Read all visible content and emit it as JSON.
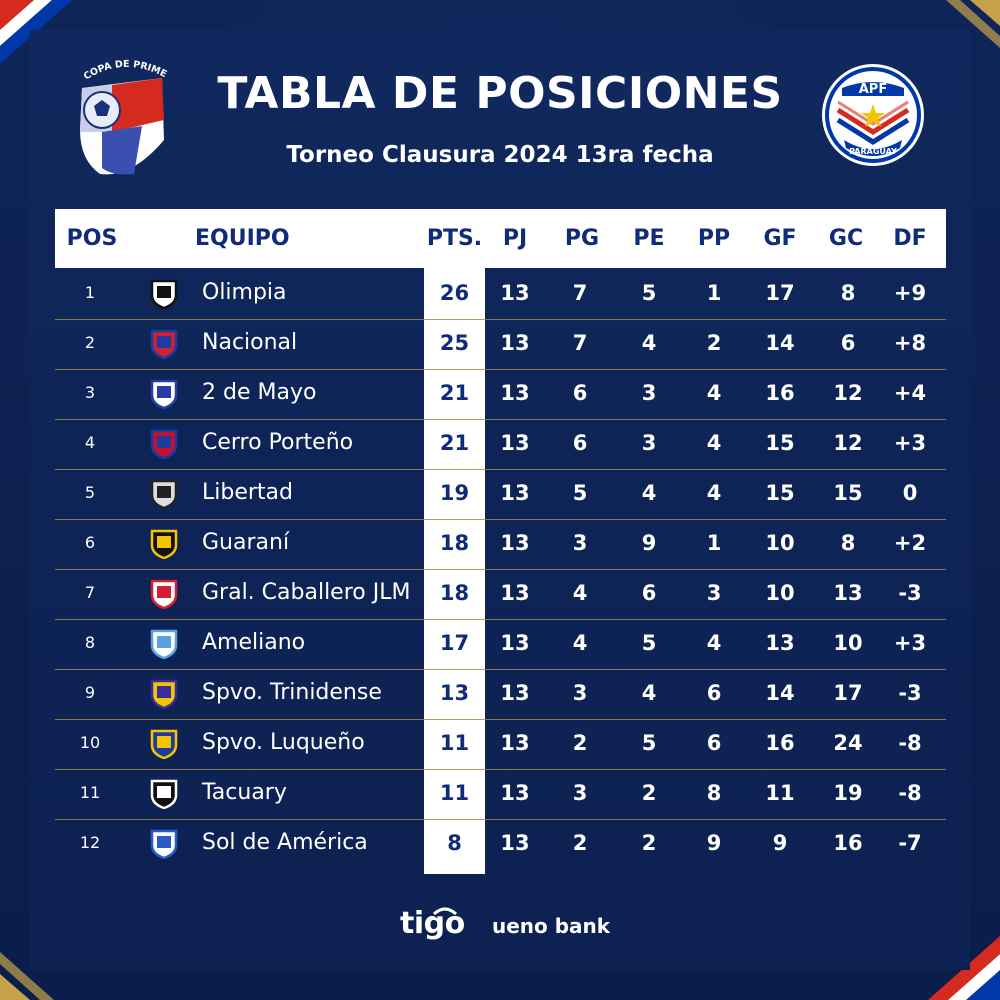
{
  "title": "TABLA DE POSICIONES",
  "subtitle": "Torneo Clausura 2024 13ra fecha",
  "logos": {
    "left_text": "COPA DE PRIMERA",
    "right_top": "APF",
    "right_bottom": "PARAGUAY"
  },
  "columns": [
    "POS",
    "EQUIPO",
    "PTS.",
    "PJ",
    "PG",
    "PE",
    "PP",
    "GF",
    "GC",
    "DF"
  ],
  "rows": [
    {
      "pos": "1",
      "team": "Olimpia",
      "pts": "26",
      "pj": "13",
      "pg": "7",
      "pe": "5",
      "pp": "1",
      "gf": "17",
      "gc": "8",
      "df": "+9",
      "crest": "olimpia-crest-icon",
      "c1": "#111111",
      "c2": "#ffffff"
    },
    {
      "pos": "2",
      "team": "Nacional",
      "pts": "25",
      "pj": "13",
      "pg": "7",
      "pe": "4",
      "pp": "2",
      "gf": "14",
      "gc": "6",
      "df": "+8",
      "crest": "nacional-crest-icon",
      "c1": "#1c3da0",
      "c2": "#d22030"
    },
    {
      "pos": "3",
      "team": "2 de Mayo",
      "pts": "21",
      "pj": "13",
      "pg": "6",
      "pe": "3",
      "pp": "4",
      "gf": "16",
      "gc": "12",
      "df": "+4",
      "crest": "2-de-mayo-crest-icon",
      "c1": "#2a3aa8",
      "c2": "#ffffff"
    },
    {
      "pos": "4",
      "team": "Cerro Porteño",
      "pts": "21",
      "pj": "13",
      "pg": "6",
      "pe": "3",
      "pp": "4",
      "gf": "15",
      "gc": "12",
      "df": "+3",
      "crest": "cerro-porteno-crest-icon",
      "c1": "#1d3b9c",
      "c2": "#c8102e"
    },
    {
      "pos": "5",
      "team": "Libertad",
      "pts": "19",
      "pj": "13",
      "pg": "5",
      "pe": "4",
      "pp": "4",
      "gf": "15",
      "gc": "15",
      "df": "0",
      "crest": "libertad-crest-icon",
      "c1": "#222222",
      "c2": "#dddddd"
    },
    {
      "pos": "6",
      "team": "Guaraní",
      "pts": "18",
      "pj": "13",
      "pg": "3",
      "pe": "9",
      "pp": "1",
      "gf": "10",
      "gc": "8",
      "df": "+2",
      "crest": "guarani-crest-icon",
      "c1": "#f5c400",
      "c2": "#111111"
    },
    {
      "pos": "7",
      "team": "Gral. Caballero JLM",
      "pts": "18",
      "pj": "13",
      "pg": "4",
      "pe": "6",
      "pp": "3",
      "gf": "10",
      "gc": "13",
      "df": "-3",
      "crest": "gral-caballero-crest-icon",
      "c1": "#d22030",
      "c2": "#ffffff"
    },
    {
      "pos": "8",
      "team": "Ameliano",
      "pts": "17",
      "pj": "13",
      "pg": "4",
      "pe": "5",
      "pp": "4",
      "gf": "13",
      "gc": "10",
      "df": "+3",
      "crest": "ameliano-crest-icon",
      "c1": "#5aa0e0",
      "c2": "#ffffff"
    },
    {
      "pos": "9",
      "team": "Spvo. Trinidense",
      "pts": "13",
      "pj": "13",
      "pg": "3",
      "pe": "4",
      "pp": "6",
      "gf": "14",
      "gc": "17",
      "df": "-3",
      "crest": "trinidense-crest-icon",
      "c1": "#3b2a9a",
      "c2": "#f5c400"
    },
    {
      "pos": "10",
      "team": "Spvo. Luqueño",
      "pts": "11",
      "pj": "13",
      "pg": "2",
      "pe": "5",
      "pp": "6",
      "gf": "16",
      "gc": "24",
      "df": "-8",
      "crest": "luqueno-crest-icon",
      "c1": "#f5c400",
      "c2": "#1d3b9c"
    },
    {
      "pos": "11",
      "team": "Tacuary",
      "pts": "11",
      "pj": "13",
      "pg": "3",
      "pe": "2",
      "pp": "8",
      "gf": "11",
      "gc": "19",
      "df": "-8",
      "crest": "tacuary-crest-icon",
      "c1": "#ffffff",
      "c2": "#111111"
    },
    {
      "pos": "12",
      "team": "Sol de América",
      "pts": "8",
      "pj": "13",
      "pg": "2",
      "pe": "2",
      "pp": "9",
      "gf": "9",
      "gc": "16",
      "df": "-7",
      "crest": "sol-de-america-crest-icon",
      "c1": "#2a5cc8",
      "c2": "#ffffff"
    }
  ],
  "sponsors": {
    "tigo": "tigo",
    "ueno": "ueno bank"
  },
  "colors": {
    "background": "#0d2153",
    "header_text": "#0f2b7a",
    "separator": "#9a8a48",
    "red": "#d52b1e",
    "blue": "#0038a8"
  }
}
